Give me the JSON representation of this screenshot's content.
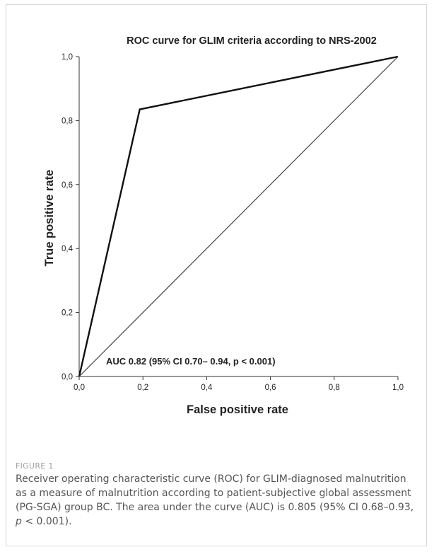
{
  "chart_data": {
    "type": "line",
    "title": "ROC curve for GLIM criteria according to NRS-2002",
    "xlabel": "False positive rate",
    "ylabel": "True positive rate",
    "xlim": [
      0,
      1
    ],
    "ylim": [
      0,
      1
    ],
    "x_ticks": [
      "0,0",
      "0,2",
      "0,4",
      "0,6",
      "0,8",
      "1,0"
    ],
    "y_ticks": [
      "0,0",
      "0,2",
      "0,4",
      "0,6",
      "0,8",
      "1,0"
    ],
    "grid": false,
    "series": [
      {
        "x": [
          0.0,
          0.19,
          1.0
        ],
        "y": [
          0.0,
          0.835,
          1.0
        ],
        "style": "thick"
      },
      {
        "x": [
          0.0,
          1.0
        ],
        "y": [
          0.0,
          1.0
        ],
        "style": "thin"
      }
    ],
    "annotation": "AUC 0.82 (95% CI 0.70– 0.94, p < 0.001)"
  },
  "caption": {
    "label": "FIGURE 1",
    "text_part1": "Receiver operating characteristic curve (ROC) for GLIM-diagnosed malnutrition as a measure of malnutrition according to patient-subjective global assessment (PG-SGA) group BC. The area under the curve (AUC) is 0.805 (95% CI 0.68–0.93, ",
    "p_symbol": "p",
    "text_part2": " < 0.001)."
  },
  "colors": {
    "axis": "#333333",
    "curve": "#111111",
    "caption_label": "#a0a0a0",
    "caption_text": "#555555"
  }
}
